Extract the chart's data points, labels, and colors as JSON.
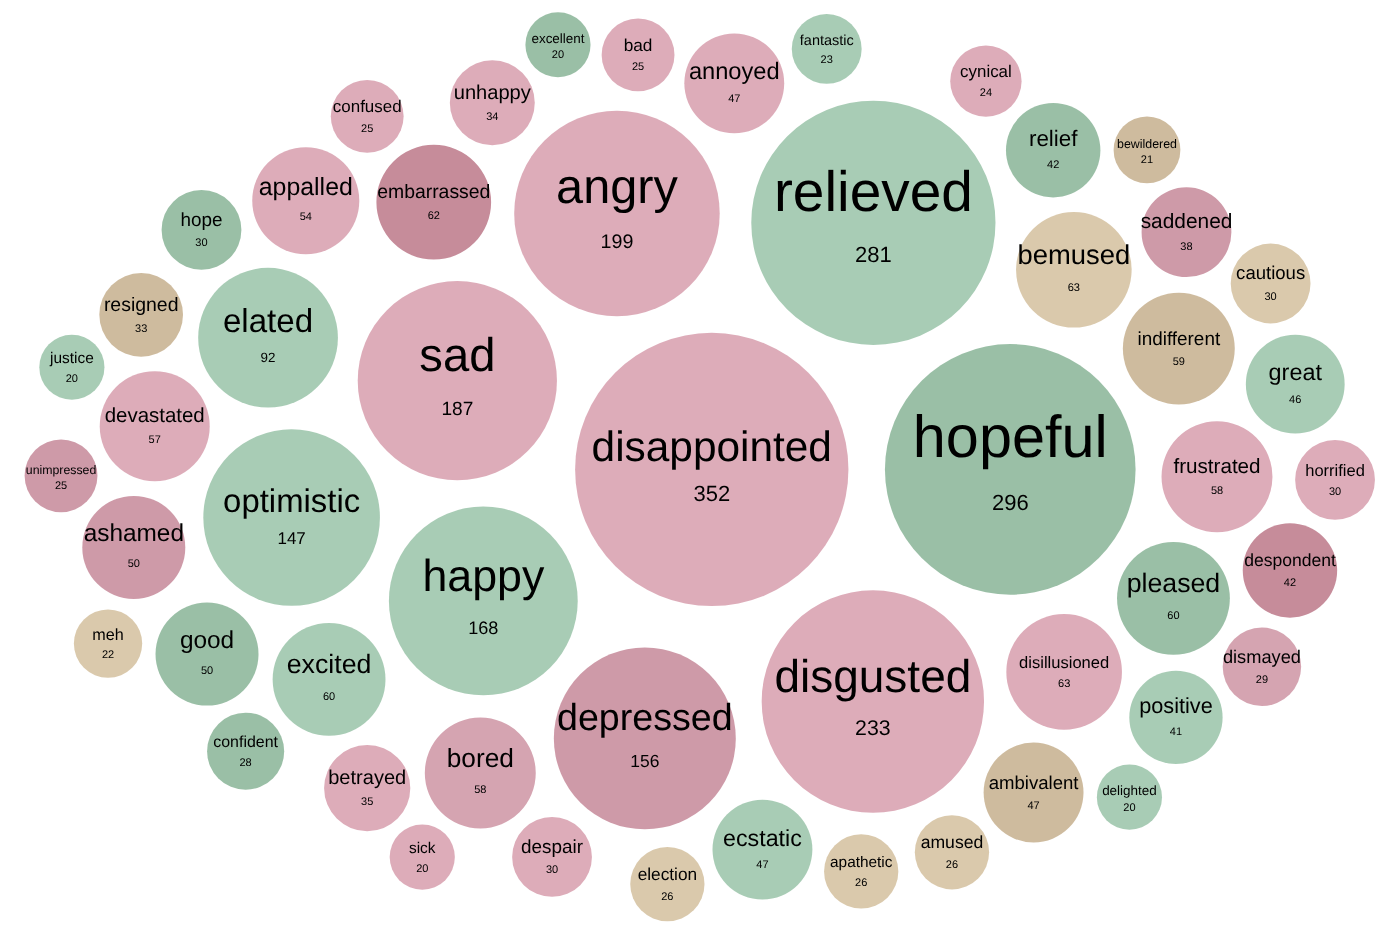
{
  "chart_data": {
    "type": "other",
    "categories": [
      "disappointed",
      "disgusted",
      "angry",
      "relieved",
      "happy",
      "hopeful",
      "sad",
      "depressed",
      "optimistic",
      "elated",
      "appalled",
      "disillusioned",
      "despair",
      "amused",
      "delighted",
      "horrified",
      "positive",
      "fantastic",
      "betrayed",
      "justice",
      "apathetic",
      "election",
      "devastated",
      "meh",
      "ecstatic",
      "unhappy",
      "great",
      "excited",
      "bad",
      "cautious",
      "frustrated",
      "ambivalent",
      "confused",
      "sick",
      "bored",
      "annoyed",
      "bemused",
      "cynical",
      "unimpressed",
      "confident",
      "hope",
      "dismayed",
      "indifferent",
      "pleased",
      "good",
      "ashamed",
      "excellent",
      "resigned",
      "saddened",
      "bewildered",
      "embarrassed",
      "despondent",
      "relief"
    ],
    "values": [
      352,
      233,
      199,
      281,
      168,
      296,
      187,
      156,
      147,
      92,
      54,
      63,
      30,
      26,
      20,
      30,
      41,
      23,
      35,
      20,
      26,
      26,
      57,
      22,
      47,
      34,
      46,
      60,
      25,
      30,
      58,
      47,
      25,
      20,
      58,
      47,
      63,
      24,
      25,
      28,
      30,
      29,
      59,
      60,
      50,
      50,
      20,
      33,
      38,
      21,
      62,
      42,
      42
    ],
    "colors": [
      "#d9a3b1",
      "#d9a3b1",
      "#d9a3b1",
      "#9ec6ad",
      "#9ec6ad",
      "#8fb89c",
      "#d9a3b1",
      "#c98f9e",
      "#9ec6ad",
      "#9ec6ad",
      "#d9a3b1",
      "#d9a3b1",
      "#d9a3b1",
      "#d6c3a3",
      "#9ec6ad",
      "#d9a3b1",
      "#9ec6ad",
      "#9ec6ad",
      "#d9a3b1",
      "#9ec6ad",
      "#d6c3a3",
      "#d6c3a3",
      "#d9a3b1",
      "#d6c3a3",
      "#9ec6ad",
      "#d9a3b1",
      "#9ec6ad",
      "#9ec6ad",
      "#d9a3b1",
      "#d6c3a3",
      "#d9a3b1",
      "#c9b494",
      "#d9a3b1",
      "#d9a3b1",
      "#d09aa8",
      "#d9a3b1",
      "#d6c3a3",
      "#d9a3b1",
      "#c98f9e",
      "#8fb89c",
      "#8fb89c",
      "#d09aa8",
      "#c9b494",
      "#8fb89c",
      "#8fb89c",
      "#c98f9e",
      "#8fb89c",
      "#c9b494",
      "#c98f9e",
      "#c9b494",
      "#c0808f",
      "#c0808f",
      "#8fb89c"
    ],
    "data_labels": true
  }
}
